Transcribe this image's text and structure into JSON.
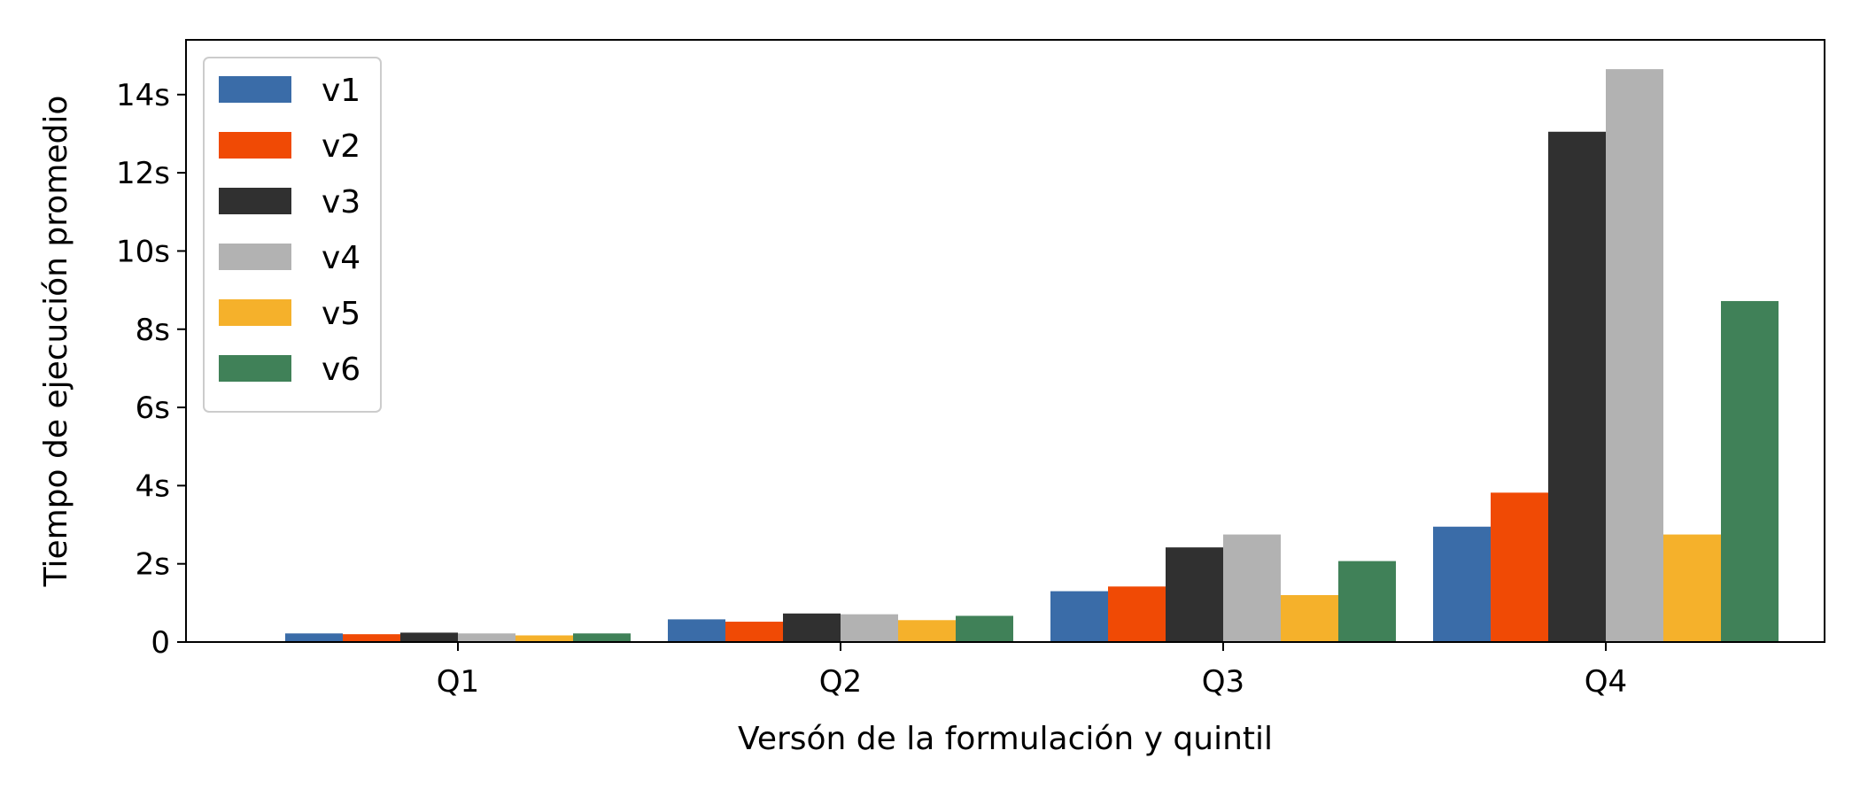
{
  "chart_data": {
    "type": "bar",
    "title": "",
    "xlabel": "Versón de la formulación y quintil",
    "ylabel": "Tiempo de ejecución promedio",
    "categories": [
      "Q1",
      "Q2",
      "Q3",
      "Q4"
    ],
    "series": [
      {
        "name": "v1",
        "color": "#3a6ca8",
        "values": [
          0.22,
          0.58,
          1.3,
          2.95
        ]
      },
      {
        "name": "v2",
        "color": "#f04a05",
        "values": [
          0.2,
          0.52,
          1.42,
          3.82
        ]
      },
      {
        "name": "v3",
        "color": "#303030",
        "values": [
          0.24,
          0.73,
          2.42,
          13.05
        ]
      },
      {
        "name": "v4",
        "color": "#b2b2b2",
        "values": [
          0.22,
          0.71,
          2.75,
          14.65
        ]
      },
      {
        "name": "v5",
        "color": "#f5b12b",
        "values": [
          0.17,
          0.56,
          1.2,
          2.75
        ]
      },
      {
        "name": "v6",
        "color": "#408158",
        "values": [
          0.22,
          0.67,
          2.07,
          8.72
        ]
      }
    ],
    "ylim": [
      0,
      15.4
    ],
    "yticks": [
      0,
      2,
      4,
      6,
      8,
      10,
      12,
      14
    ],
    "ytick_labels": [
      "0",
      "2s",
      "4s",
      "6s",
      "8s",
      "10s",
      "12s",
      "14s"
    ],
    "grid": false,
    "legend_position": "top-left"
  }
}
